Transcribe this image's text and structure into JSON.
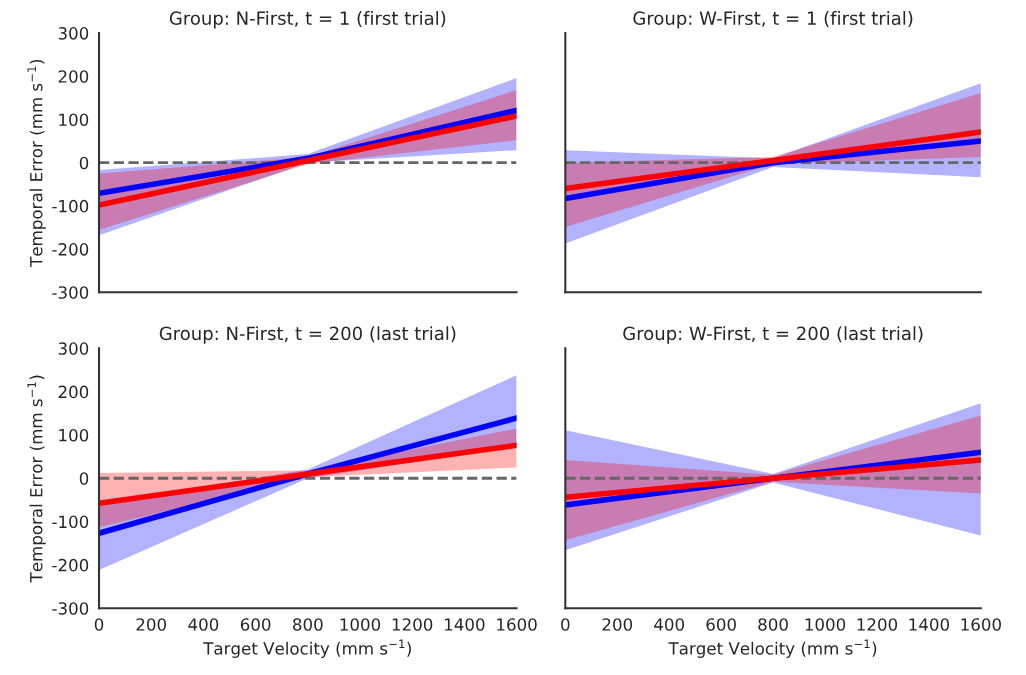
{
  "chart_data": [
    {
      "type": "line",
      "title": "Group: N-First, t = 1 (first trial)",
      "ylabel": "Temporal Error (mm s$^{−1}$)",
      "xlim": [
        0,
        1600
      ],
      "ylim": [
        -300,
        300
      ],
      "xticks": [
        0,
        200,
        400,
        600,
        800,
        1000,
        1200,
        1400,
        1600
      ],
      "yticks": [
        -300,
        -200,
        -100,
        0,
        100,
        200,
        300
      ],
      "tick_labels": "y",
      "grid": false,
      "legend": false,
      "ref_lines": [
        {
          "axis": "y",
          "value": 0,
          "color": "#666666",
          "line_style": "dashed"
        }
      ],
      "series": [
        {
          "color": "#0000ff",
          "x": [
            0,
            800,
            1600
          ],
          "values": [
            -71,
            10,
            121
          ],
          "lower": [
            -168,
            0,
            29
          ],
          "upper": [
            -17,
            20,
            196
          ]
        },
        {
          "color": "#ff0000",
          "x": [
            0,
            800,
            1600
          ],
          "values": [
            -98,
            5,
            108
          ],
          "lower": [
            -156,
            -3,
            52
          ],
          "upper": [
            -25,
            13,
            168
          ]
        }
      ]
    },
    {
      "type": "line",
      "title": "Group: W-First, t = 1 (first trial)",
      "xlim": [
        0,
        1600
      ],
      "ylim": [
        -300,
        300
      ],
      "xticks": [
        0,
        200,
        400,
        600,
        800,
        1000,
        1200,
        1400,
        1600
      ],
      "yticks": [
        -300,
        -200,
        -100,
        0,
        100,
        200,
        300
      ],
      "tick_labels": false,
      "grid": false,
      "legend": false,
      "ref_lines": [
        {
          "axis": "y",
          "value": 0,
          "color": "#666666",
          "line_style": "dashed"
        }
      ],
      "series": [
        {
          "color": "#0000ff",
          "x": [
            0,
            800,
            1600
          ],
          "values": [
            -83,
            0,
            50
          ],
          "lower": [
            -187,
            -10,
            -34
          ],
          "upper": [
            29,
            10,
            184
          ]
        },
        {
          "color": "#ff0000",
          "x": [
            0,
            800,
            1600
          ],
          "values": [
            -60,
            5,
            71
          ],
          "lower": [
            -149,
            -3,
            13
          ],
          "upper": [
            0,
            13,
            161
          ]
        }
      ]
    },
    {
      "type": "line",
      "title": "Group: N-First, t = 200 (last trial)",
      "xlabel": "Target Velocity (mm s$^{−1}$)",
      "ylabel": "Temporal Error (mm s$^{−1}$)",
      "xlim": [
        0,
        1600
      ],
      "ylim": [
        -300,
        300
      ],
      "xticks": [
        0,
        200,
        400,
        600,
        800,
        1000,
        1200,
        1400,
        1600
      ],
      "yticks": [
        -300,
        -200,
        -100,
        0,
        100,
        200,
        300
      ],
      "grid": false,
      "legend": false,
      "ref_lines": [
        {
          "axis": "y",
          "value": 0,
          "color": "#666666",
          "line_style": "dashed"
        }
      ],
      "series": [
        {
          "color": "#0000ff",
          "x": [
            0,
            800,
            1600
          ],
          "values": [
            -127,
            10,
            139
          ],
          "lower": [
            -212,
            0,
            72
          ],
          "upper": [
            -58,
            20,
            238
          ]
        },
        {
          "color": "#ff0000",
          "x": [
            0,
            800,
            1600
          ],
          "values": [
            -58,
            10,
            76
          ],
          "lower": [
            -113,
            2,
            25
          ],
          "upper": [
            12,
            18,
            115
          ]
        }
      ]
    },
    {
      "type": "line",
      "title": "Group: W-First, t = 200 (last trial)",
      "xlabel": "Target Velocity (mm s$^{−1}$)",
      "xlim": [
        0,
        1600
      ],
      "ylim": [
        -300,
        300
      ],
      "xticks": [
        0,
        200,
        400,
        600,
        800,
        1000,
        1200,
        1400,
        1600
      ],
      "yticks": [
        -300,
        -200,
        -100,
        0,
        100,
        200,
        300
      ],
      "tick_labels": "x",
      "grid": false,
      "legend": false,
      "ref_lines": [
        {
          "axis": "y",
          "value": 0,
          "color": "#666666",
          "line_style": "dashed"
        }
      ],
      "series": [
        {
          "color": "#0000ff",
          "x": [
            0,
            800,
            1600
          ],
          "values": [
            -62,
            0,
            60
          ],
          "lower": [
            -166,
            -10,
            -132
          ],
          "upper": [
            111,
            10,
            173
          ]
        },
        {
          "color": "#ff0000",
          "x": [
            0,
            800,
            1600
          ],
          "values": [
            -44,
            0,
            42
          ],
          "lower": [
            -143,
            -8,
            -35
          ],
          "upper": [
            42,
            8,
            145
          ]
        }
      ]
    }
  ]
}
